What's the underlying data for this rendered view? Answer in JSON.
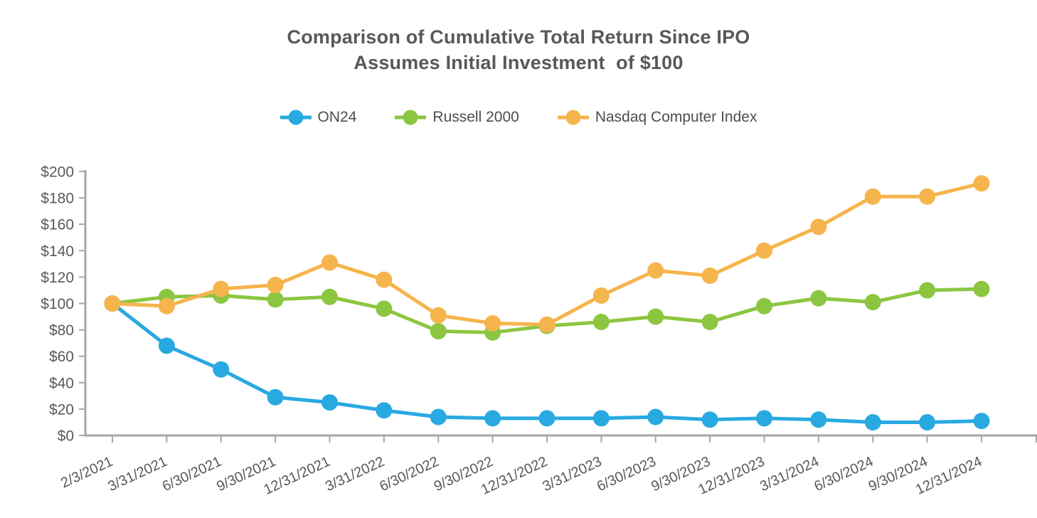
{
  "chart_data": {
    "type": "line",
    "title": "Comparison of Cumulative Total Return Since IPO",
    "subtitle": "Assumes Initial Investment  of $100",
    "categories": [
      "2/3/2021",
      "3/31/2021",
      "6/30/2021",
      "9/30/2021",
      "12/31/2021",
      "3/31/2022",
      "6/30/2022",
      "9/30/2022",
      "12/31/2022",
      "3/31/2023",
      "6/30/2023",
      "9/30/2023",
      "12/31/2023",
      "3/31/2024",
      "6/30/2024",
      "9/30/2024",
      "12/31/2024"
    ],
    "series": [
      {
        "name": "ON24",
        "color": "#29A9E1",
        "values": [
          100,
          68,
          50,
          29,
          25,
          19,
          14,
          13,
          13,
          13,
          14,
          12,
          13,
          12,
          10,
          10,
          11
        ]
      },
      {
        "name": "Russell 2000",
        "color": "#8CC640",
        "values": [
          100,
          105,
          106,
          103,
          105,
          96,
          79,
          78,
          83,
          86,
          90,
          86,
          98,
          104,
          101,
          110,
          111
        ]
      },
      {
        "name": "Nasdaq Computer Index",
        "color": "#F6B44D",
        "values": [
          100,
          98,
          111,
          114,
          131,
          118,
          91,
          85,
          84,
          106,
          125,
          121,
          140,
          158,
          181,
          181,
          191
        ]
      }
    ],
    "xlabel": "",
    "ylabel": "",
    "ylim": [
      0,
      200
    ],
    "ytick_step": 20,
    "ytick_prefix": "$",
    "x_tick_label_rotation": -25,
    "grid": false,
    "legend_position": "top",
    "marker_style": "circle",
    "axis_color": "#A6A6A6",
    "tick_label_color": "#595959"
  }
}
